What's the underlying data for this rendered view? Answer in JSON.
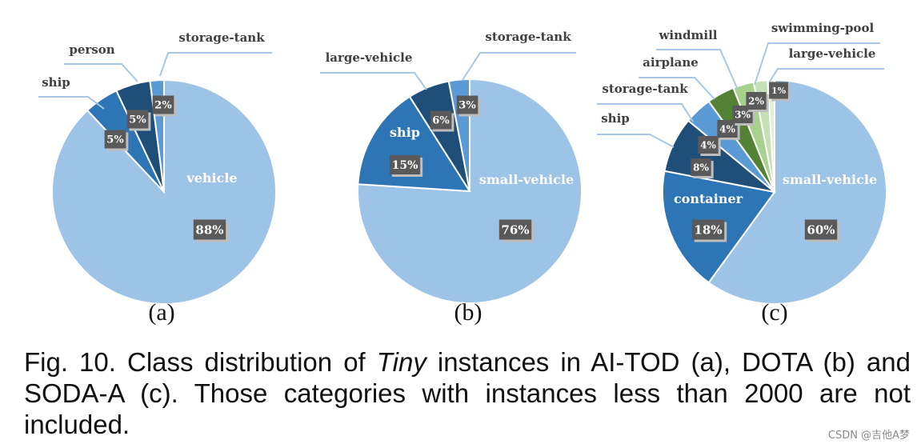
{
  "chart_data": [
    {
      "type": "pie",
      "panel_label": "(a)",
      "slices": [
        {
          "name": "vehicle",
          "value": 88,
          "pct_label": "88%",
          "color": "#9dc3e6"
        },
        {
          "name": "ship",
          "value": 5,
          "pct_label": "5%",
          "color": "#2e75b6"
        },
        {
          "name": "person",
          "value": 5,
          "pct_label": "5%",
          "color": "#1f4e79"
        },
        {
          "name": "storage-tank",
          "value": 2,
          "pct_label": "2%",
          "color": "#5b9bd5"
        }
      ]
    },
    {
      "type": "pie",
      "panel_label": "(b)",
      "slices": [
        {
          "name": "small-vehicle",
          "value": 76,
          "pct_label": "76%",
          "color": "#9dc3e6"
        },
        {
          "name": "ship",
          "value": 15,
          "pct_label": "15%",
          "color": "#2e75b6"
        },
        {
          "name": "large-vehicle",
          "value": 6,
          "pct_label": "6%",
          "color": "#1f4e79"
        },
        {
          "name": "storage-tank",
          "value": 3,
          "pct_label": "3%",
          "color": "#5b9bd5"
        }
      ]
    },
    {
      "type": "pie",
      "panel_label": "(c)",
      "slices": [
        {
          "name": "small-vehicle",
          "value": 60,
          "pct_label": "60%",
          "color": "#9dc3e6"
        },
        {
          "name": "container",
          "value": 18,
          "pct_label": "18%",
          "color": "#2e75b6"
        },
        {
          "name": "ship",
          "value": 8,
          "pct_label": "8%",
          "color": "#1f4e79"
        },
        {
          "name": "storage-tank",
          "value": 4,
          "pct_label": "4%",
          "color": "#5b9bd5"
        },
        {
          "name": "airplane",
          "value": 4,
          "pct_label": "4%",
          "color": "#548235"
        },
        {
          "name": "windmill",
          "value": 3,
          "pct_label": "3%",
          "color": "#a9d18e"
        },
        {
          "name": "swimming-pool",
          "value": 2,
          "pct_label": "2%",
          "color": "#c5e0b4"
        },
        {
          "name": "large-vehicle",
          "value": 1,
          "pct_label": "1%",
          "color": "#e2f0d9"
        }
      ]
    }
  ],
  "caption": {
    "prefix": "Fig. 10. Class distribution of ",
    "italic": "Tiny",
    "suffix": " instances in AI-TOD (a), DOTA (b) and SODA-A (c). Those categories with instances less than 2000 are not included."
  },
  "watermark": "CSDN @吉他A梦",
  "colors": {
    "label_box": "#595959",
    "leader_line": "#a6c8e6",
    "label_text": "#404040",
    "inside_label_text": "#ffffff"
  }
}
